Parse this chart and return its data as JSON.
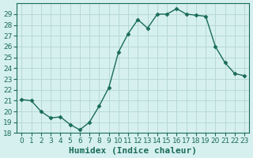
{
  "x": [
    0,
    1,
    2,
    3,
    4,
    5,
    6,
    7,
    8,
    9,
    10,
    11,
    12,
    13,
    14,
    15,
    16,
    17,
    18,
    19,
    20,
    21,
    22,
    23
  ],
  "y": [
    21.1,
    21.0,
    20.0,
    19.4,
    19.5,
    18.8,
    18.3,
    19.0,
    20.5,
    22.2,
    25.5,
    27.2,
    28.5,
    27.7,
    29.0,
    29.0,
    29.5,
    29.0,
    28.9,
    28.8,
    26.0,
    24.5,
    23.5,
    23.3
  ],
  "line_color": "#1a6b5a",
  "marker": "D",
  "marker_size": 2.5,
  "background_color": "#d6f0f0",
  "grid_color": "#b8d8d8",
  "xlabel": "Humidex (Indice chaleur)",
  "ylim": [
    18,
    30
  ],
  "xlim": [
    -0.5,
    23.5
  ],
  "yticks": [
    18,
    19,
    20,
    21,
    22,
    23,
    24,
    25,
    26,
    27,
    28,
    29
  ],
  "xticks": [
    0,
    1,
    2,
    3,
    4,
    5,
    6,
    7,
    8,
    9,
    10,
    11,
    12,
    13,
    14,
    15,
    16,
    17,
    18,
    19,
    20,
    21,
    22,
    23
  ],
  "tick_color": "#1a6b5a",
  "label_fontsize": 8,
  "tick_fontsize": 6.5,
  "spine_color": "#1a6b5a"
}
